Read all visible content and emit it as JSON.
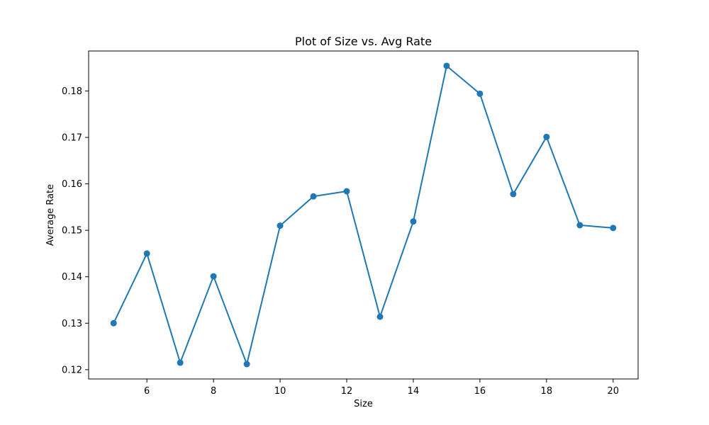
{
  "chart_data": {
    "type": "line",
    "title": "Plot of Size vs. Avg Rate",
    "xlabel": "Size",
    "ylabel": "Average Rate",
    "x": [
      5,
      6,
      7,
      8,
      9,
      10,
      11,
      12,
      13,
      14,
      15,
      16,
      17,
      18,
      19,
      20
    ],
    "series": [
      {
        "values": [
          0.13,
          0.145,
          0.1215,
          0.1401,
          0.1212,
          0.151,
          0.1573,
          0.1584,
          0.1314,
          0.1519,
          0.1854,
          0.1794,
          0.1578,
          0.1701,
          0.1511,
          0.1505
        ],
        "color": "#1f77b4",
        "marker": "circle"
      }
    ],
    "xlim": [
      4.25,
      20.75
    ],
    "ylim": [
      0.118,
      0.1886
    ],
    "xticks": [
      6,
      8,
      10,
      12,
      14,
      16,
      18,
      20
    ],
    "yticks": [
      0.12,
      0.13,
      0.14,
      0.15,
      0.16,
      0.17,
      0.18
    ],
    "ytick_labels": [
      "0.12",
      "0.13",
      "0.14",
      "0.15",
      "0.16",
      "0.17",
      "0.18"
    ],
    "grid": false,
    "legend": false
  }
}
